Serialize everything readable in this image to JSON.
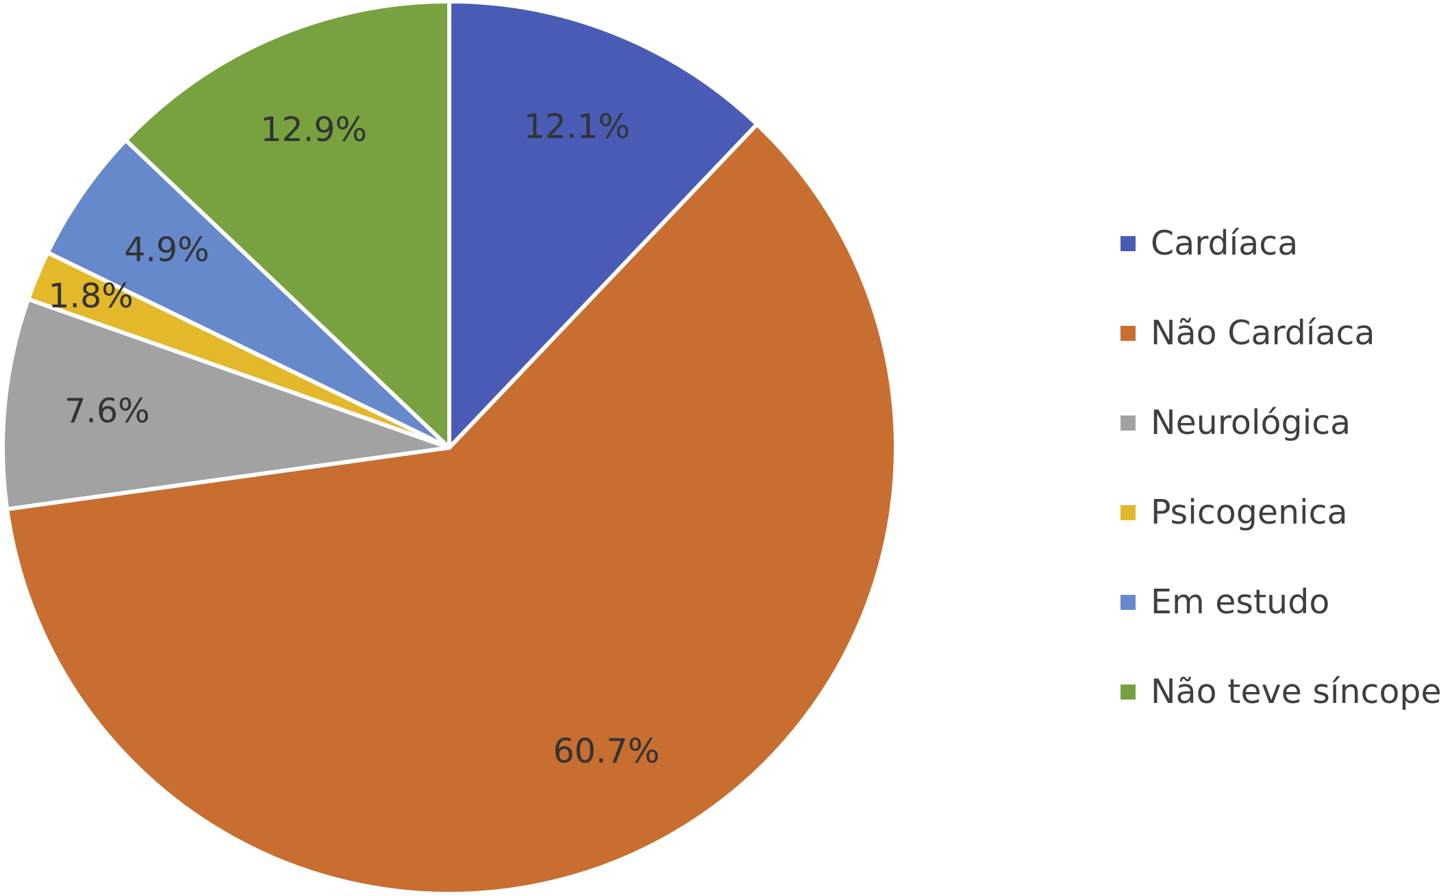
{
  "chart_data": {
    "type": "pie",
    "title": "",
    "legend_position": "right",
    "categories": [
      "Cardíaca",
      "Não Cardíaca",
      "Neurológica",
      "Psicogenica",
      "Em estudo",
      "Não teve síncope"
    ],
    "values": [
      12.1,
      60.7,
      7.6,
      1.8,
      4.9,
      12.9
    ],
    "value_labels": [
      "12.1%",
      "60.7%",
      "7.6%",
      "1.8%",
      "4.9%",
      "12.9%"
    ],
    "colors": [
      "#4A5BB5",
      "#C86E31",
      "#A2A2A2",
      "#E3B82A",
      "#6689CB",
      "#78A240"
    ]
  }
}
